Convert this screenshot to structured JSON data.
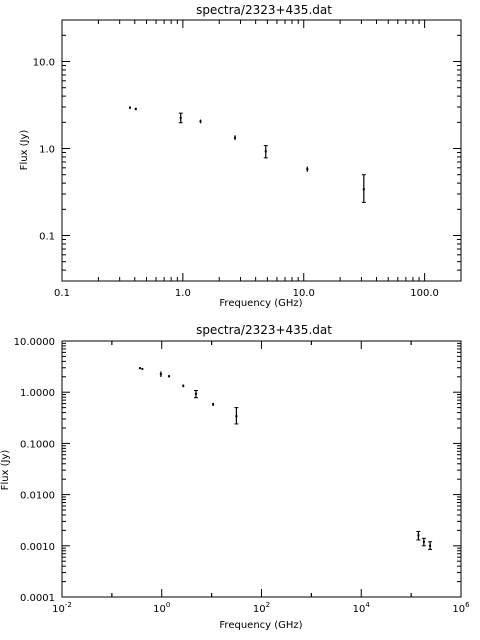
{
  "chart_data": [
    {
      "type": "scatter",
      "title": "spectra/2323+435.dat",
      "xlabel": "Frequency (GHz)",
      "ylabel": "Flux (Jy)",
      "xscale": "log",
      "yscale": "log",
      "xlim": [
        0.1,
        200
      ],
      "ylim": [
        0.03,
        30
      ],
      "xticks": [
        0.1,
        1,
        10,
        100
      ],
      "xticklabels": [
        "0.1",
        "1.0",
        "10.0",
        "100.0"
      ],
      "yticks": [
        0.1,
        1,
        10
      ],
      "yticklabels": [
        "0.1",
        "1.0",
        "10.0"
      ],
      "grid": false,
      "points": [
        {
          "x": 0.365,
          "y": 2.95,
          "ylo": 2.85,
          "yhi": 3.05
        },
        {
          "x": 0.408,
          "y": 2.85,
          "ylo": 2.75,
          "yhi": 2.95
        },
        {
          "x": 0.96,
          "y": 2.25,
          "ylo": 1.98,
          "yhi": 2.55
        },
        {
          "x": 1.4,
          "y": 2.05,
          "ylo": 1.95,
          "yhi": 2.15
        },
        {
          "x": 2.7,
          "y": 1.33,
          "ylo": 1.25,
          "yhi": 1.42
        },
        {
          "x": 4.85,
          "y": 0.93,
          "ylo": 0.78,
          "yhi": 1.08
        },
        {
          "x": 10.7,
          "y": 0.58,
          "ylo": 0.54,
          "yhi": 0.62
        },
        {
          "x": 31.4,
          "y": 0.34,
          "ylo": 0.24,
          "yhi": 0.5
        }
      ]
    },
    {
      "type": "scatter",
      "title": "spectra/2323+435.dat",
      "xlabel": "Frequency (GHz)",
      "ylabel": "Flux (Jy)",
      "xscale": "log",
      "yscale": "log",
      "xlim": [
        0.01,
        1000000
      ],
      "ylim": [
        0.0001,
        10
      ],
      "xticks": [
        0.01,
        1,
        100,
        10000,
        1000000
      ],
      "xtick_base": "10",
      "xtick_exponents": [
        "-2",
        "0",
        "2",
        "4",
        "6"
      ],
      "yticks": [
        0.0001,
        0.001,
        0.01,
        0.1,
        1,
        10
      ],
      "yticklabels": [
        "0.0001",
        "0.0010",
        "0.0100",
        "0.1000",
        "1.0000",
        "10.0000"
      ],
      "grid": false,
      "points": [
        {
          "x": 0.365,
          "y": 2.95,
          "ylo": 2.85,
          "yhi": 3.05
        },
        {
          "x": 0.408,
          "y": 2.85,
          "ylo": 2.75,
          "yhi": 2.95
        },
        {
          "x": 0.96,
          "y": 2.25,
          "ylo": 1.98,
          "yhi": 2.55
        },
        {
          "x": 1.4,
          "y": 2.05,
          "ylo": 1.95,
          "yhi": 2.15
        },
        {
          "x": 2.7,
          "y": 1.33,
          "ylo": 1.25,
          "yhi": 1.42
        },
        {
          "x": 4.85,
          "y": 0.93,
          "ylo": 0.78,
          "yhi": 1.08
        },
        {
          "x": 10.7,
          "y": 0.58,
          "ylo": 0.54,
          "yhi": 0.62
        },
        {
          "x": 31.4,
          "y": 0.34,
          "ylo": 0.24,
          "yhi": 0.5
        },
        {
          "x": 140000,
          "y": 0.0016,
          "ylo": 0.0013,
          "yhi": 0.0019
        },
        {
          "x": 180000,
          "y": 0.0012,
          "ylo": 0.001,
          "yhi": 0.0014
        },
        {
          "x": 240000,
          "y": 0.001,
          "ylo": 0.00085,
          "yhi": 0.0012
        }
      ]
    }
  ]
}
